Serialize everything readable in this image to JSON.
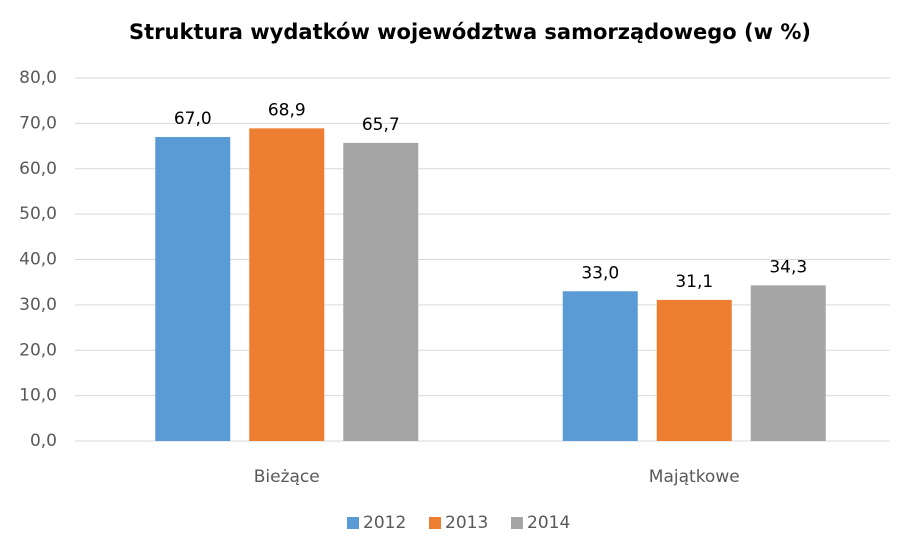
{
  "chart_data": {
    "type": "bar",
    "title": "Struktura wydatków województwa samorządowego (w %)",
    "categories": [
      "Bieżące",
      "Majątkowe"
    ],
    "series": [
      {
        "name": "2012",
        "color": "#5b9bd5",
        "values": [
          67.0,
          33.0
        ],
        "value_labels": [
          "67,0",
          "33,0"
        ]
      },
      {
        "name": "2013",
        "color": "#ed7d31",
        "values": [
          68.9,
          31.1
        ],
        "value_labels": [
          "68,9",
          "31,1"
        ]
      },
      {
        "name": "2014",
        "color": "#a5a5a5",
        "values": [
          65.7,
          34.3
        ],
        "value_labels": [
          "65,7",
          "34,3"
        ]
      }
    ],
    "ylim": [
      0,
      80
    ],
    "yticks": [
      {
        "value": 0,
        "label": "0,0"
      },
      {
        "value": 10,
        "label": "10,0"
      },
      {
        "value": 20,
        "label": "20,0"
      },
      {
        "value": 30,
        "label": "30,0"
      },
      {
        "value": 40,
        "label": "40,0"
      },
      {
        "value": 50,
        "label": "50,0"
      },
      {
        "value": 60,
        "label": "60,0"
      },
      {
        "value": 70,
        "label": "70,0"
      },
      {
        "value": 80,
        "label": "80,0"
      }
    ],
    "grid": true,
    "legend": "bottom"
  }
}
